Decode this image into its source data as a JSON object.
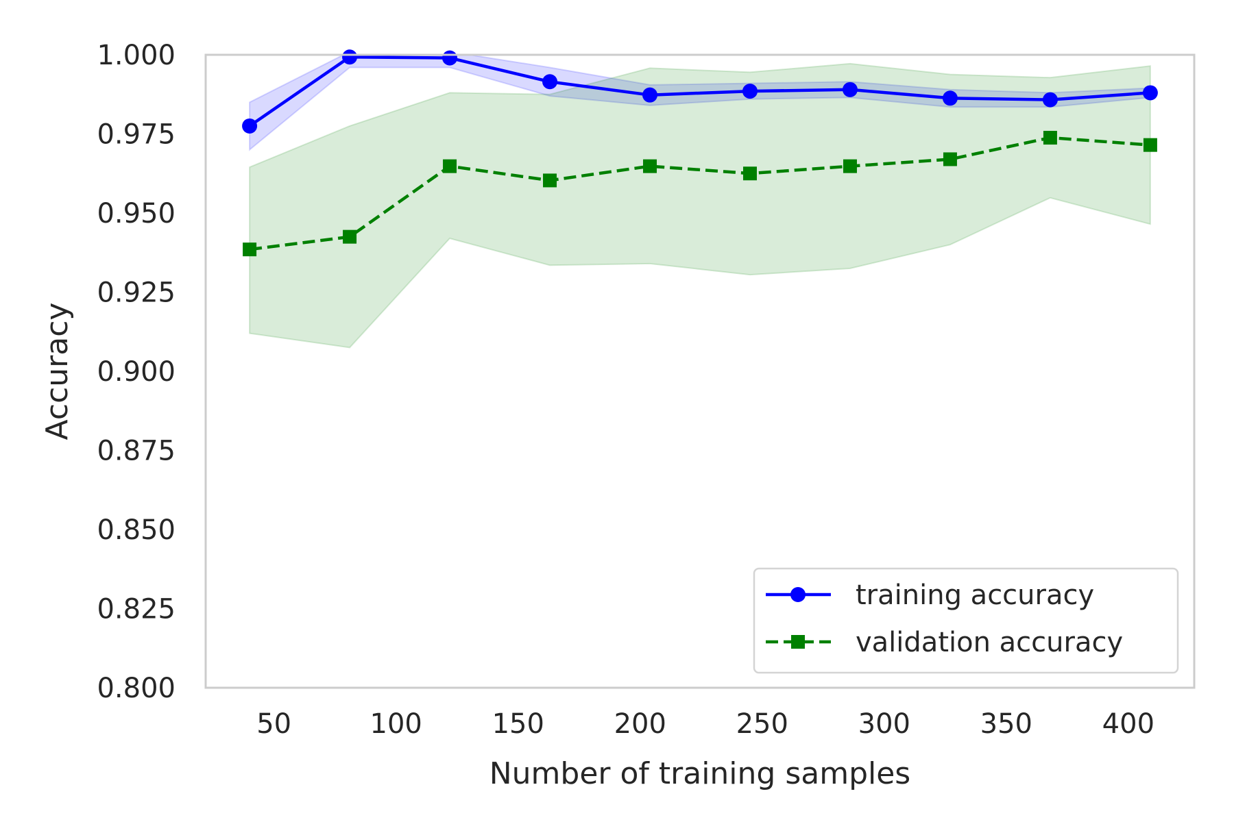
{
  "chart_data": {
    "type": "line",
    "title": "",
    "xlabel": "Number of training samples",
    "ylabel": "Accuracy",
    "x": [
      40,
      81,
      122,
      163,
      204,
      245,
      286,
      327,
      368,
      409
    ],
    "xlim": [
      22,
      427
    ],
    "ylim": [
      0.8,
      1.0
    ],
    "xticks": [
      "50",
      "100",
      "150",
      "200",
      "250",
      "300",
      "350",
      "400"
    ],
    "yticks": [
      "0.800",
      "0.825",
      "0.850",
      "0.875",
      "0.900",
      "0.925",
      "0.950",
      "0.975",
      "1.000"
    ],
    "grid": false,
    "legend_position": "lower-right",
    "series": [
      {
        "name": "training accuracy",
        "color": "#0000ff",
        "marker": "circle",
        "line_style": "solid",
        "values": [
          0.9775,
          0.9993,
          0.999,
          0.9915,
          0.9873,
          0.9885,
          0.989,
          0.9863,
          0.9858,
          0.988
        ],
        "lower": [
          0.97,
          0.996,
          0.996,
          0.987,
          0.984,
          0.986,
          0.9865,
          0.9835,
          0.9835,
          0.9865
        ],
        "upper": [
          0.985,
          1.001,
          1.001,
          0.996,
          0.9905,
          0.991,
          0.9915,
          0.989,
          0.988,
          0.9895
        ]
      },
      {
        "name": "validation accuracy",
        "color": "#008000",
        "marker": "square",
        "line_style": "dashed",
        "values": [
          0.9385,
          0.9425,
          0.9648,
          0.9603,
          0.9648,
          0.9625,
          0.9648,
          0.967,
          0.9738,
          0.9715
        ],
        "lower": [
          0.912,
          0.9075,
          0.942,
          0.9335,
          0.934,
          0.9305,
          0.9325,
          0.94,
          0.9548,
          0.9465
        ],
        "upper": [
          0.9645,
          0.9775,
          0.988,
          0.9875,
          0.9958,
          0.9945,
          0.9972,
          0.9938,
          0.9928,
          0.9965
        ]
      }
    ]
  }
}
